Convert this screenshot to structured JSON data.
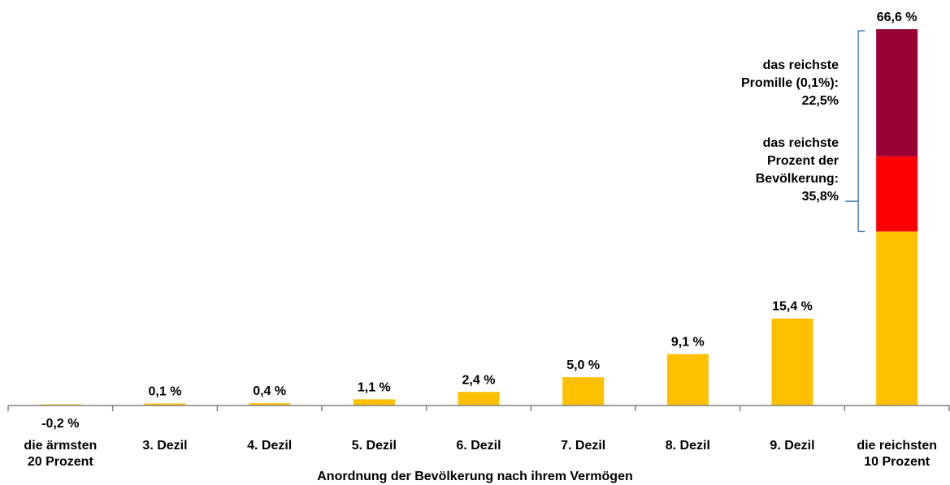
{
  "chart_data": {
    "type": "bar",
    "categories": [
      [
        "die ärmsten",
        "20 Prozent"
      ],
      [
        "3. Dezil"
      ],
      [
        "4. Dezil"
      ],
      [
        "5. Dezil"
      ],
      [
        "6. Dezil"
      ],
      [
        "7. Dezil"
      ],
      [
        "8. Dezil"
      ],
      [
        "9. Dezil"
      ],
      [
        "die reichsten",
        "10 Prozent"
      ]
    ],
    "values": [
      -0.2,
      0.1,
      0.4,
      1.1,
      2.4,
      5.0,
      9.1,
      15.4,
      66.6
    ],
    "value_labels": [
      "-0,2 %",
      "0,1 %",
      "0,4 %",
      "1,1 %",
      "2,4 %",
      "5,0 %",
      "9,1 %",
      "15,4 %",
      "66,6 %"
    ],
    "top_bar_breakdown": {
      "rest_of_top_10_percent": 30.8,
      "richest_percent_excluding_promille": 13.3,
      "richest_promille": 22.5
    },
    "xlabel": "Anordnung der Bevölkerung  nach ihrem Vermögen",
    "ylabel": "",
    "ylim": [
      -0.2,
      66.6
    ],
    "grid": false,
    "colors": {
      "bar": "#FFC000",
      "richest_percent": "#FF0000",
      "richest_promille": "#990033",
      "bracket": "#4F81BD",
      "axis": "#808080"
    }
  },
  "annotations": {
    "promille": [
      "das reichste",
      "Promille (0,1%):",
      "22,5%"
    ],
    "percent": [
      "das reichste",
      "Prozent der",
      "Bevölkerung:",
      "35,8%"
    ]
  }
}
